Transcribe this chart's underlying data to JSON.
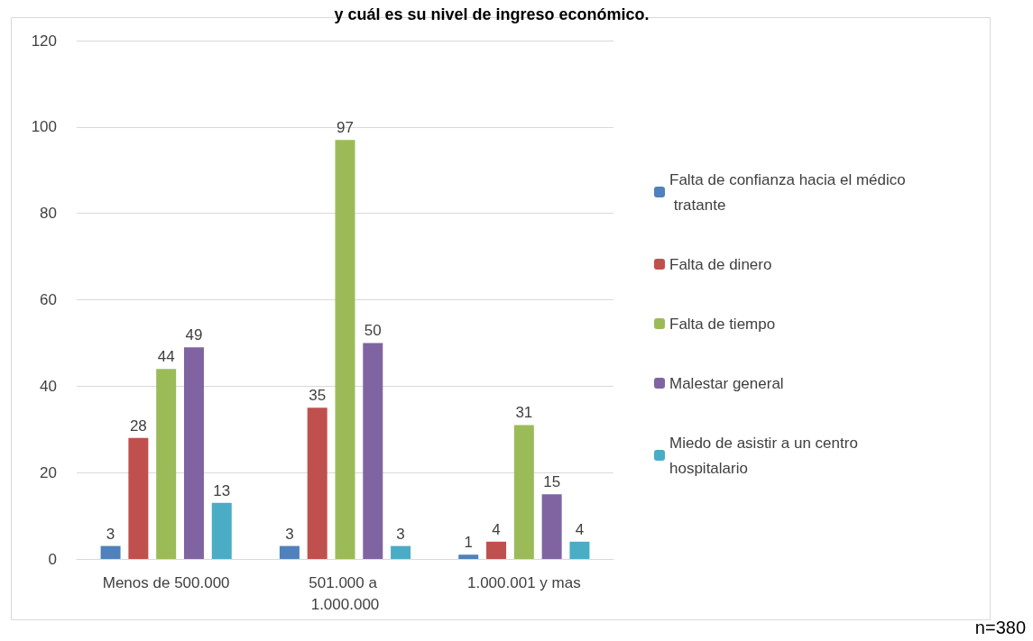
{
  "chart_data": {
    "type": "bar",
    "title": "y cuál es su nivel de ingreso económico.",
    "categories": [
      "Menos de 500.000",
      "501.000 a 1.000.000",
      "1.000.001 y mas"
    ],
    "series": [
      {
        "name": "Falta de confianza hacia el médico tratante",
        "color": "#4f81bd",
        "values": [
          3,
          3,
          1
        ]
      },
      {
        "name": "Falta de dinero",
        "color": "#c0504d",
        "values": [
          28,
          35,
          4
        ]
      },
      {
        "name": "Falta de tiempo",
        "color": "#9bbb59",
        "values": [
          44,
          97,
          31
        ]
      },
      {
        "name": "Malestar general",
        "color": "#8064a2",
        "values": [
          49,
          50,
          15
        ]
      },
      {
        "name": "Miedo de asistir a un centro hospitalario",
        "color": "#4bacc6",
        "values": [
          13,
          3,
          4
        ]
      }
    ],
    "ylim": [
      0,
      120
    ],
    "yticks": [
      0,
      20,
      40,
      60,
      80,
      100,
      120
    ],
    "grid": "y",
    "legend": "right",
    "data_labels": true,
    "annotations": [
      "n=380"
    ]
  }
}
